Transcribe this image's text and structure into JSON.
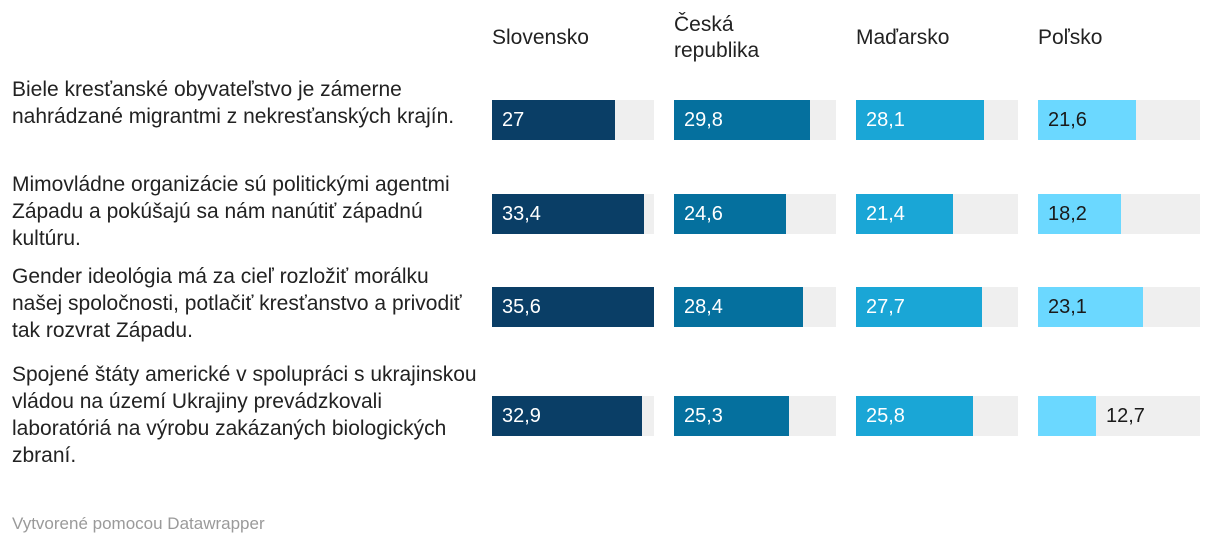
{
  "chart_data": {
    "type": "bar",
    "columns": [
      {
        "name": "Slovensko",
        "color": "#0a3e66"
      },
      {
        "name": "Česká republika",
        "color": "#05709e"
      },
      {
        "name": "Maďarsko",
        "color": "#1aa6d6"
      },
      {
        "name": "Poľsko",
        "color": "#6bd8ff"
      }
    ],
    "rows": [
      {
        "label": "Biele kresťanské obyvateľstvo je zámerne nahrádzané migrantmi z nekresťanských krajín.",
        "values": [
          27,
          29.8,
          28.1,
          21.6
        ],
        "display": [
          "27",
          "29,8",
          "28,1",
          "21,6"
        ]
      },
      {
        "label": "Mimovládne organizácie sú politickými agentmi Západu a pokúšajú sa nám nanútiť západnú kultúru.",
        "values": [
          33.4,
          24.6,
          21.4,
          18.2
        ],
        "display": [
          "33,4",
          "24,6",
          "21,4",
          "18,2"
        ]
      },
      {
        "label": "Gender ideológia má za cieľ rozložiť morálku našej spoločnosti, potlačiť kresťanstvo a privodiť tak rozvrat Západu.",
        "values": [
          35.6,
          28.4,
          27.7,
          23.1
        ],
        "display": [
          "35,6",
          "28,4",
          "27,7",
          "23,1"
        ]
      },
      {
        "label": "Spojené štáty americké v spolupráci s ukrajinskou vládou na území Ukrajiny prevádzkovali laboratóriá na výrobu zakázaných biologických zbraní.",
        "values": [
          32.9,
          25.3,
          25.8,
          12.7
        ],
        "display": [
          "32,9",
          "25,3",
          "25,8",
          "12,7"
        ]
      }
    ],
    "xlim": [
      0,
      35.6
    ]
  },
  "footer": "Vytvorené pomocou Datawrapper"
}
